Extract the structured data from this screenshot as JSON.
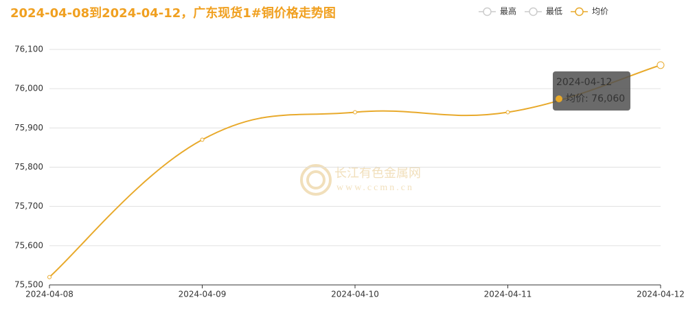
{
  "chart_data": {
    "type": "line",
    "title": "2024-04-08到2024-04-12，广东现货1#铜价格走势图",
    "x": [
      "2024-04-08",
      "2024-04-09",
      "2024-04-10",
      "2024-04-11",
      "2024-04-12"
    ],
    "legend": [
      {
        "name": "最高",
        "active": false
      },
      {
        "name": "最低",
        "active": false
      },
      {
        "name": "均价",
        "active": true
      }
    ],
    "series": [
      {
        "name": "均价",
        "color": "#e8a92a",
        "values": [
          75520,
          75870,
          75940,
          75940,
          76060
        ]
      }
    ],
    "ylim": [
      75500,
      76100
    ],
    "yticks": [
      {
        "value": 75500,
        "label": "75,500"
      },
      {
        "value": 75600,
        "label": "75,600"
      },
      {
        "value": 75700,
        "label": "75,700"
      },
      {
        "value": 75800,
        "label": "75,800"
      },
      {
        "value": 75900,
        "label": "75,900"
      },
      {
        "value": 76000,
        "label": "76,000"
      },
      {
        "value": 76100,
        "label": "76,100"
      }
    ],
    "grid": true,
    "smooth": true,
    "tooltip": {
      "title": "2024-04-12",
      "text": "均价: 76,060"
    },
    "watermark": {
      "name": "长江有色金属网",
      "url": "www.ccmn.cn"
    }
  }
}
